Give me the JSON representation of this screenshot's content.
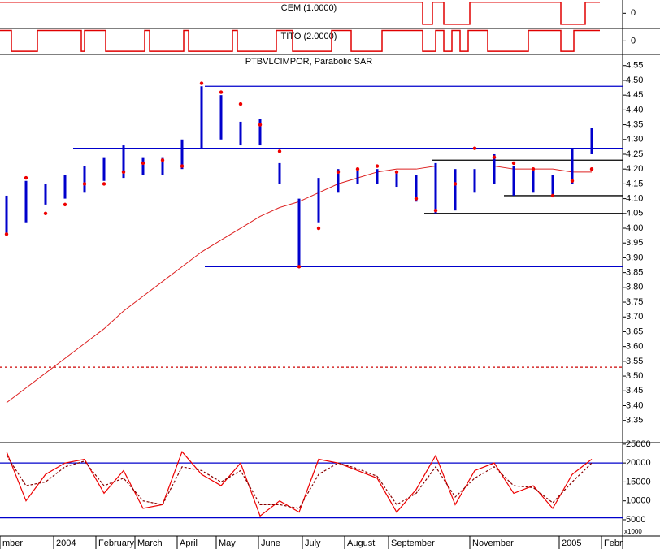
{
  "chart_data": [
    {
      "type": "step",
      "title": "CEM (1.0000)",
      "color": "#e00000",
      "x": [
        0,
        260,
        266,
        273,
        289,
        345,
        360,
        369
      ],
      "values": [
        1,
        -1,
        1,
        -1,
        1,
        -1,
        1,
        1
      ],
      "xlim": [
        0,
        383
      ],
      "ylim": [
        -1.3,
        1.2
      ],
      "yticks": [
        0
      ]
    },
    {
      "type": "step",
      "title": "TITO (2.0000)",
      "color": "#e00000",
      "x": [
        0,
        7,
        23,
        50,
        52,
        65,
        89,
        92,
        113,
        116,
        143,
        146,
        170,
        180,
        204,
        216,
        235,
        260,
        268,
        273,
        278,
        283,
        288,
        300,
        325,
        345,
        353,
        369
      ],
      "values": [
        1,
        -1,
        1,
        -1,
        1,
        -1,
        1,
        -1,
        1,
        -1,
        1,
        -1,
        1,
        -1,
        1,
        -1,
        1,
        -1,
        1,
        -1,
        1,
        -1,
        1,
        -1,
        1,
        -1,
        1,
        1
      ],
      "xlim": [
        0,
        383
      ],
      "ylim": [
        -1.3,
        1.2
      ],
      "yticks": [
        0
      ]
    },
    {
      "type": "hilo",
      "title": "PTBVLCIMPOR, Parabolic SAR",
      "color": "#0000cc",
      "x": [
        4,
        16,
        28,
        40,
        52,
        64,
        76,
        88,
        100,
        112,
        124,
        136,
        148,
        160,
        172,
        184,
        196,
        208,
        220,
        232,
        244,
        256,
        268,
        280,
        292,
        304,
        316,
        328,
        340,
        352,
        364
      ],
      "high": [
        4.11,
        4.16,
        4.15,
        4.18,
        4.21,
        4.24,
        4.28,
        4.24,
        4.24,
        4.3,
        4.48,
        4.45,
        4.36,
        4.37,
        4.22,
        4.1,
        4.17,
        4.2,
        4.2,
        4.2,
        4.19,
        4.18,
        4.22,
        4.2,
        4.2,
        4.25,
        4.21,
        4.2,
        4.18,
        4.27,
        4.34
      ],
      "low": [
        3.98,
        4.02,
        4.08,
        4.1,
        4.12,
        4.16,
        4.17,
        4.18,
        4.18,
        4.2,
        4.27,
        4.3,
        4.28,
        4.28,
        4.15,
        3.87,
        4.02,
        4.12,
        4.15,
        4.15,
        4.14,
        4.09,
        4.05,
        4.06,
        4.12,
        4.15,
        4.11,
        4.12,
        4.11,
        4.15,
        4.25
      ],
      "overlays": [
        {
          "type": "dots",
          "color": "#ee0000",
          "values": [
            3.98,
            4.17,
            4.05,
            4.08,
            4.15,
            4.15,
            4.19,
            4.22,
            4.23,
            4.21,
            4.49,
            4.46,
            4.42,
            4.35,
            4.26,
            3.87,
            4.0,
            4.19,
            4.2,
            4.21,
            4.19,
            4.1,
            4.06,
            4.15,
            4.27,
            4.24,
            4.22,
            4.2,
            4.11,
            4.16,
            4.2
          ]
        },
        {
          "type": "line",
          "color": "#dd2020",
          "values": [
            3.41,
            3.46,
            3.51,
            3.56,
            3.61,
            3.66,
            3.72,
            3.77,
            3.82,
            3.87,
            3.92,
            3.96,
            4.0,
            4.04,
            4.07,
            4.09,
            4.12,
            4.15,
            4.17,
            4.19,
            4.2,
            4.2,
            4.21,
            4.21,
            4.21,
            4.21,
            4.2,
            4.2,
            4.2,
            4.19,
            4.19
          ]
        }
      ],
      "levels": [
        {
          "value": 4.48,
          "from": 126,
          "color": "#0000cc"
        },
        {
          "value": 4.27,
          "from": 45,
          "color": "#0000cc"
        },
        {
          "value": 3.87,
          "from": 126,
          "color": "#0000cc"
        },
        {
          "value": 4.23,
          "from": 266,
          "color": "#000000"
        },
        {
          "value": 4.11,
          "from": 310,
          "color": "#000000"
        },
        {
          "value": 4.05,
          "from": 261,
          "color": "#000000"
        },
        {
          "value": 3.53,
          "from": 0,
          "color": "#cc0000",
          "dashed": true
        }
      ],
      "xlim": [
        0,
        383
      ],
      "ylim": [
        3.275,
        4.585
      ],
      "yticks": [
        4.55,
        {
          "value": 4.5,
          "label": "4.50"
        },
        4.45,
        {
          "value": 4.4,
          "label": "4.40"
        },
        4.35,
        {
          "value": 4.3,
          "label": "4.30"
        },
        4.25,
        {
          "value": 4.2,
          "label": "4.20"
        },
        4.15,
        {
          "value": 4.1,
          "label": "4.10"
        },
        4.05,
        {
          "value": 4,
          "label": "4.00"
        },
        3.95,
        {
          "value": 3.9,
          "label": "3.90"
        },
        3.85,
        {
          "value": 3.8,
          "label": "3.80"
        },
        3.75,
        {
          "value": 3.7,
          "label": "3.70"
        },
        3.65,
        {
          "value": 3.6,
          "label": "3.60"
        },
        3.55,
        {
          "value": 3.5,
          "label": "3.50"
        },
        3.45,
        {
          "value": 3.4,
          "label": "3.40"
        },
        3.35
      ]
    },
    {
      "type": "line",
      "unit_label": "x1000",
      "x": [
        4,
        16,
        28,
        40,
        52,
        64,
        76,
        88,
        100,
        112,
        124,
        136,
        148,
        160,
        172,
        184,
        196,
        208,
        220,
        232,
        244,
        256,
        268,
        280,
        292,
        304,
        316,
        328,
        340,
        352,
        364
      ],
      "series": [
        {
          "color": "#ee0000",
          "values": [
            23000,
            10000,
            17000,
            20000,
            21000,
            12000,
            18000,
            8000,
            9000,
            23000,
            17000,
            14000,
            20000,
            6000,
            10000,
            7000,
            21000,
            20000,
            18000,
            16000,
            7000,
            13000,
            22000,
            9000,
            18000,
            20000,
            12000,
            14000,
            8000,
            17000,
            21000
          ]
        },
        {
          "color": "#880000",
          "dashed": true,
          "values": [
            22000,
            14000,
            15000,
            19000,
            20500,
            14000,
            16000,
            10000,
            9000,
            19000,
            18000,
            15000,
            18000,
            9000,
            9000,
            8000,
            17000,
            20000,
            18500,
            16500,
            9000,
            12000,
            19000,
            11000,
            16000,
            19000,
            14000,
            13500,
            9500,
            15000,
            20000
          ]
        }
      ],
      "levels": [
        {
          "value": 20000,
          "from": 0,
          "color": "#0000cc"
        },
        {
          "value": 5500,
          "from": 0,
          "color": "#0000cc"
        }
      ],
      "xlim": [
        0,
        383
      ],
      "ylim": [
        700,
        25400
      ],
      "yticks": [
        25000,
        20000,
        15000,
        10000,
        5000
      ],
      "xticks": [
        {
          "value": 0,
          "label": "mber"
        },
        {
          "value": 33,
          "label": "2004"
        },
        {
          "value": 59,
          "label": "February"
        },
        {
          "value": 83,
          "label": "March"
        },
        {
          "value": 109,
          "label": "April"
        },
        {
          "value": 133,
          "label": "May"
        },
        {
          "value": 159,
          "label": "June"
        },
        {
          "value": 186,
          "label": "July"
        },
        {
          "value": 212,
          "label": "August"
        },
        {
          "value": 239,
          "label": "September"
        },
        {
          "value": 289,
          "label": "November"
        },
        {
          "value": 344,
          "label": "2005"
        },
        {
          "value": 370,
          "label": "Febr"
        }
      ]
    }
  ]
}
